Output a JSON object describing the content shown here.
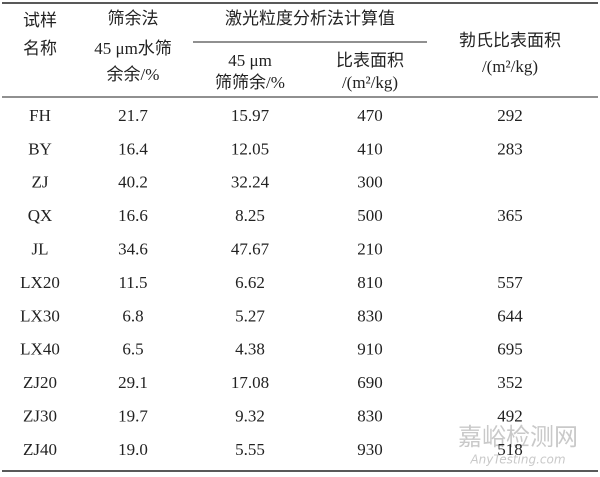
{
  "header": {
    "group": "激光粒度分析法计算值",
    "columns": [
      [
        "试样",
        "名称"
      ],
      [
        "筛余法",
        "45 μm水筛",
        "余余/%"
      ],
      [
        "45 μm",
        "筛筛余/%"
      ],
      [
        "比表面积",
        "/(m²/kg)"
      ],
      [
        "勃氏比表面积",
        "/(m²/kg)"
      ]
    ]
  },
  "table": {
    "rows": [
      [
        "FH",
        "21.7",
        "15.97",
        "470",
        "292"
      ],
      [
        "BY",
        "16.4",
        "12.05",
        "410",
        "283"
      ],
      [
        "ZJ",
        "40.2",
        "32.24",
        "300",
        null
      ],
      [
        "QX",
        "16.6",
        "8.25",
        "500",
        "365"
      ],
      [
        "JL",
        "34.6",
        "47.67",
        "210",
        null
      ],
      [
        "LX20",
        "11.5",
        "6.62",
        "810",
        "557"
      ],
      [
        "LX30",
        "6.8",
        "5.27",
        "830",
        "644"
      ],
      [
        "LX40",
        "6.5",
        "4.38",
        "910",
        "695"
      ],
      [
        "ZJ20",
        "29.1",
        "17.08",
        "690",
        "352"
      ],
      [
        "ZJ30",
        "19.7",
        "9.32",
        "830",
        "492"
      ],
      [
        "ZJ40",
        "19.0",
        "5.55",
        "930",
        "518"
      ]
    ]
  },
  "watermark": {
    "title": "嘉峪检测网",
    "subtitle": "AnyTesting.com"
  }
}
